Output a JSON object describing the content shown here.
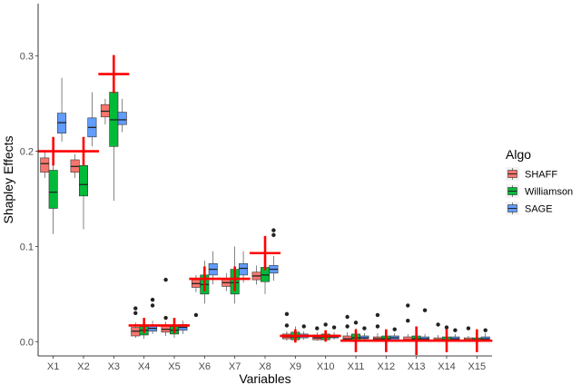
{
  "chart_data": {
    "type": "boxplot",
    "xlabel": "Variables",
    "ylabel": "Shapley Effects",
    "categories": [
      "X1",
      "X2",
      "X3",
      "X4",
      "X5",
      "X6",
      "X7",
      "X8",
      "X9",
      "X10",
      "X11",
      "X12",
      "X13",
      "X14",
      "X15"
    ],
    "ylim": [
      -0.015,
      0.355
    ],
    "yticks": [
      0.0,
      0.1,
      0.2,
      0.3
    ],
    "ytick_labels": [
      "0.0",
      "0.1",
      "0.2",
      "0.3"
    ],
    "grid": false,
    "legend": {
      "title": "Algo",
      "position": "right"
    },
    "series": [
      {
        "name": "SHAFF",
        "color": "#F8766D",
        "boxes": [
          {
            "min": 0.172,
            "q1": 0.178,
            "median": 0.187,
            "q3": 0.193,
            "max": 0.2,
            "outliers": []
          },
          {
            "min": 0.172,
            "q1": 0.178,
            "median": 0.184,
            "q3": 0.191,
            "max": 0.197,
            "outliers": []
          },
          {
            "min": 0.228,
            "q1": 0.236,
            "median": 0.242,
            "q3": 0.249,
            "max": 0.255,
            "outliers": []
          },
          {
            "min": 0.004,
            "q1": 0.006,
            "median": 0.011,
            "q3": 0.015,
            "max": 0.02,
            "outliers": [
              0.03,
              0.035
            ]
          },
          {
            "min": 0.006,
            "q1": 0.01,
            "median": 0.013,
            "q3": 0.017,
            "max": 0.021,
            "outliers": [
              0.025,
              0.065
            ]
          },
          {
            "min": 0.052,
            "q1": 0.057,
            "median": 0.061,
            "q3": 0.065,
            "max": 0.07,
            "outliers": [
              0.028
            ]
          },
          {
            "min": 0.053,
            "q1": 0.058,
            "median": 0.062,
            "q3": 0.066,
            "max": 0.072,
            "outliers": []
          },
          {
            "min": 0.06,
            "q1": 0.065,
            "median": 0.069,
            "q3": 0.073,
            "max": 0.08,
            "outliers": []
          },
          {
            "min": 0.001,
            "q1": 0.003,
            "median": 0.005,
            "q3": 0.008,
            "max": 0.011,
            "outliers": [
              0.017,
              0.029
            ]
          },
          {
            "min": 0.001,
            "q1": 0.002,
            "median": 0.004,
            "q3": 0.007,
            "max": 0.01,
            "outliers": [
              0.014
            ]
          },
          {
            "min": 0.0,
            "q1": 0.002,
            "median": 0.003,
            "q3": 0.006,
            "max": 0.01,
            "outliers": [
              0.016,
              0.026
            ]
          },
          {
            "min": 0.0,
            "q1": 0.001,
            "median": 0.003,
            "q3": 0.005,
            "max": 0.009,
            "outliers": [
              0.016,
              0.028
            ]
          },
          {
            "min": 0.0,
            "q1": 0.001,
            "median": 0.002,
            "q3": 0.005,
            "max": 0.008,
            "outliers": [
              0.022,
              0.038
            ]
          },
          {
            "min": 0.0,
            "q1": 0.001,
            "median": 0.002,
            "q3": 0.004,
            "max": 0.007,
            "outliers": [
              0.018
            ]
          },
          {
            "min": 0.0,
            "q1": 0.001,
            "median": 0.002,
            "q3": 0.004,
            "max": 0.006,
            "outliers": [
              0.014
            ]
          }
        ]
      },
      {
        "name": "Williamson",
        "color": "#00BA38",
        "boxes": [
          {
            "min": 0.113,
            "q1": 0.14,
            "median": 0.157,
            "q3": 0.18,
            "max": 0.2,
            "outliers": []
          },
          {
            "min": 0.118,
            "q1": 0.153,
            "median": 0.165,
            "q3": 0.185,
            "max": 0.206,
            "outliers": []
          },
          {
            "min": 0.148,
            "q1": 0.205,
            "median": 0.233,
            "q3": 0.262,
            "max": 0.282,
            "outliers": []
          },
          {
            "min": 0.003,
            "q1": 0.007,
            "median": 0.012,
            "q3": 0.016,
            "max": 0.022,
            "outliers": []
          },
          {
            "min": 0.004,
            "q1": 0.008,
            "median": 0.012,
            "q3": 0.016,
            "max": 0.021,
            "outliers": []
          },
          {
            "min": 0.04,
            "q1": 0.05,
            "median": 0.06,
            "q3": 0.07,
            "max": 0.085,
            "outliers": []
          },
          {
            "min": 0.04,
            "q1": 0.05,
            "median": 0.062,
            "q3": 0.076,
            "max": 0.1,
            "outliers": []
          },
          {
            "min": 0.05,
            "q1": 0.063,
            "median": 0.07,
            "q3": 0.078,
            "max": 0.09,
            "outliers": []
          },
          {
            "min": 0.0,
            "q1": 0.002,
            "median": 0.005,
            "q3": 0.01,
            "max": 0.016,
            "outliers": []
          },
          {
            "min": 0.0,
            "q1": 0.002,
            "median": 0.005,
            "q3": 0.008,
            "max": 0.012,
            "outliers": [
              0.018
            ]
          },
          {
            "min": 0.0,
            "q1": 0.001,
            "median": 0.004,
            "q3": 0.008,
            "max": 0.014,
            "outliers": [
              0.02
            ]
          },
          {
            "min": 0.0,
            "q1": 0.001,
            "median": 0.003,
            "q3": 0.006,
            "max": 0.011,
            "outliers": []
          },
          {
            "min": 0.0,
            "q1": 0.001,
            "median": 0.003,
            "q3": 0.006,
            "max": 0.012,
            "outliers": []
          },
          {
            "min": 0.0,
            "q1": 0.001,
            "median": 0.002,
            "q3": 0.005,
            "max": 0.01,
            "outliers": [
              0.015
            ]
          },
          {
            "min": 0.0,
            "q1": 0.001,
            "median": 0.002,
            "q3": 0.004,
            "max": 0.008,
            "outliers": []
          }
        ]
      },
      {
        "name": "SAGE",
        "color": "#619CFF",
        "boxes": [
          {
            "min": 0.21,
            "q1": 0.219,
            "median": 0.23,
            "q3": 0.24,
            "max": 0.277,
            "outliers": []
          },
          {
            "min": 0.205,
            "q1": 0.215,
            "median": 0.225,
            "q3": 0.235,
            "max": 0.262,
            "outliers": []
          },
          {
            "min": 0.22,
            "q1": 0.228,
            "median": 0.233,
            "q3": 0.241,
            "max": 0.255,
            "outliers": []
          },
          {
            "min": 0.008,
            "q1": 0.011,
            "median": 0.014,
            "q3": 0.017,
            "max": 0.022,
            "outliers": [
              0.038,
              0.044
            ]
          },
          {
            "min": 0.008,
            "q1": 0.012,
            "median": 0.015,
            "q3": 0.018,
            "max": 0.022,
            "outliers": []
          },
          {
            "min": 0.06,
            "q1": 0.07,
            "median": 0.076,
            "q3": 0.082,
            "max": 0.095,
            "outliers": []
          },
          {
            "min": 0.062,
            "q1": 0.07,
            "median": 0.077,
            "q3": 0.082,
            "max": 0.095,
            "outliers": []
          },
          {
            "min": 0.064,
            "q1": 0.072,
            "median": 0.076,
            "q3": 0.08,
            "max": 0.09,
            "outliers": [
              0.112,
              0.117
            ]
          },
          {
            "min": 0.002,
            "q1": 0.004,
            "median": 0.006,
            "q3": 0.008,
            "max": 0.011,
            "outliers": [
              0.016
            ]
          },
          {
            "min": 0.002,
            "q1": 0.004,
            "median": 0.005,
            "q3": 0.007,
            "max": 0.01,
            "outliers": [
              0.015
            ]
          },
          {
            "min": 0.001,
            "q1": 0.003,
            "median": 0.004,
            "q3": 0.006,
            "max": 0.009,
            "outliers": [
              0.014
            ]
          },
          {
            "min": 0.001,
            "q1": 0.002,
            "median": 0.004,
            "q3": 0.006,
            "max": 0.009,
            "outliers": [
              0.013
            ]
          },
          {
            "min": 0.001,
            "q1": 0.002,
            "median": 0.003,
            "q3": 0.005,
            "max": 0.008,
            "outliers": [
              0.033
            ]
          },
          {
            "min": 0.001,
            "q1": 0.002,
            "median": 0.003,
            "q3": 0.005,
            "max": 0.008,
            "outliers": [
              0.012
            ]
          },
          {
            "min": 0.001,
            "q1": 0.002,
            "median": 0.003,
            "q3": 0.005,
            "max": 0.009,
            "outliers": [
              0.012
            ]
          }
        ]
      }
    ],
    "reference": {
      "color": "#FF0000",
      "values": [
        0.2,
        0.2,
        0.281,
        0.017,
        0.017,
        0.066,
        0.066,
        0.093,
        0.006,
        0.006,
        0.001,
        0.001,
        0.001,
        0.001,
        0.001
      ],
      "vertical_halfspan": [
        0.015,
        0.015,
        0.02,
        0.008,
        0.008,
        0.013,
        0.013,
        0.018,
        0.007,
        0.006,
        0.012,
        0.012,
        0.015,
        0.012,
        0.012
      ]
    }
  }
}
